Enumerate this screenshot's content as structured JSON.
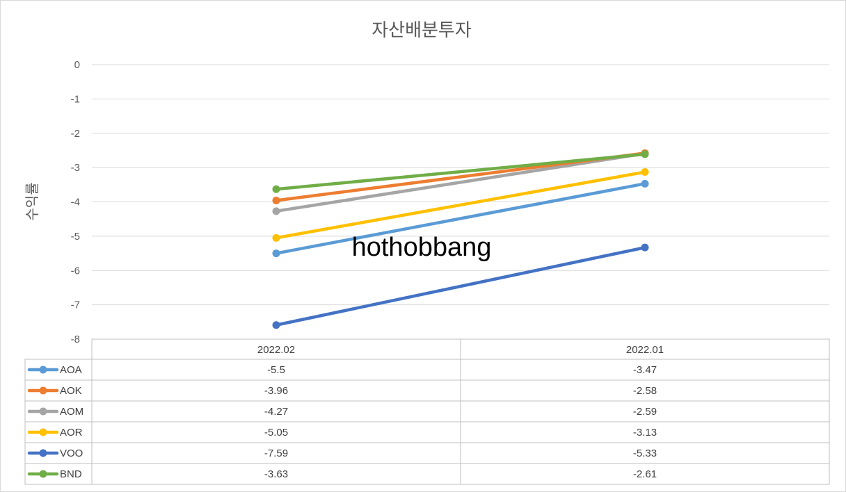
{
  "chart_data": {
    "type": "line",
    "title": "자산배분투자",
    "xlabel": "",
    "ylabel": "수익률",
    "categories": [
      "2022.02",
      "2022.01"
    ],
    "ylim": [
      -8,
      0
    ],
    "yticks": [
      "0",
      "-1",
      "-2",
      "-3",
      "-4",
      "-5",
      "-6",
      "-7",
      "-8"
    ],
    "grid": true,
    "legend": "data-table",
    "series": [
      {
        "name": "AOA",
        "values": [
          -5.5,
          -3.47
        ],
        "labels": [
          "-5.5",
          "-3.47"
        ],
        "color": "#5b9bd5"
      },
      {
        "name": "AOK",
        "values": [
          -3.96,
          -2.58
        ],
        "labels": [
          "-3.96",
          "-2.58"
        ],
        "color": "#ed7d31"
      },
      {
        "name": "AOM",
        "values": [
          -4.27,
          -2.59
        ],
        "labels": [
          "-4.27",
          "-2.59"
        ],
        "color": "#a5a5a5"
      },
      {
        "name": "AOR",
        "values": [
          -5.05,
          -3.13
        ],
        "labels": [
          "-5.05",
          "-3.13"
        ],
        "color": "#ffc000"
      },
      {
        "name": "VOO",
        "values": [
          -7.59,
          -5.33
        ],
        "labels": [
          "-7.59",
          "-5.33"
        ],
        "color": "#4472c4"
      },
      {
        "name": "BND",
        "values": [
          -3.63,
          -2.61
        ],
        "labels": [
          "-3.63",
          "-2.61"
        ],
        "color": "#70ad47"
      }
    ],
    "draw_order": [
      "VOO",
      "AOA",
      "AOR",
      "AOM",
      "AOK",
      "BND"
    ]
  },
  "watermark": "hothobbang"
}
